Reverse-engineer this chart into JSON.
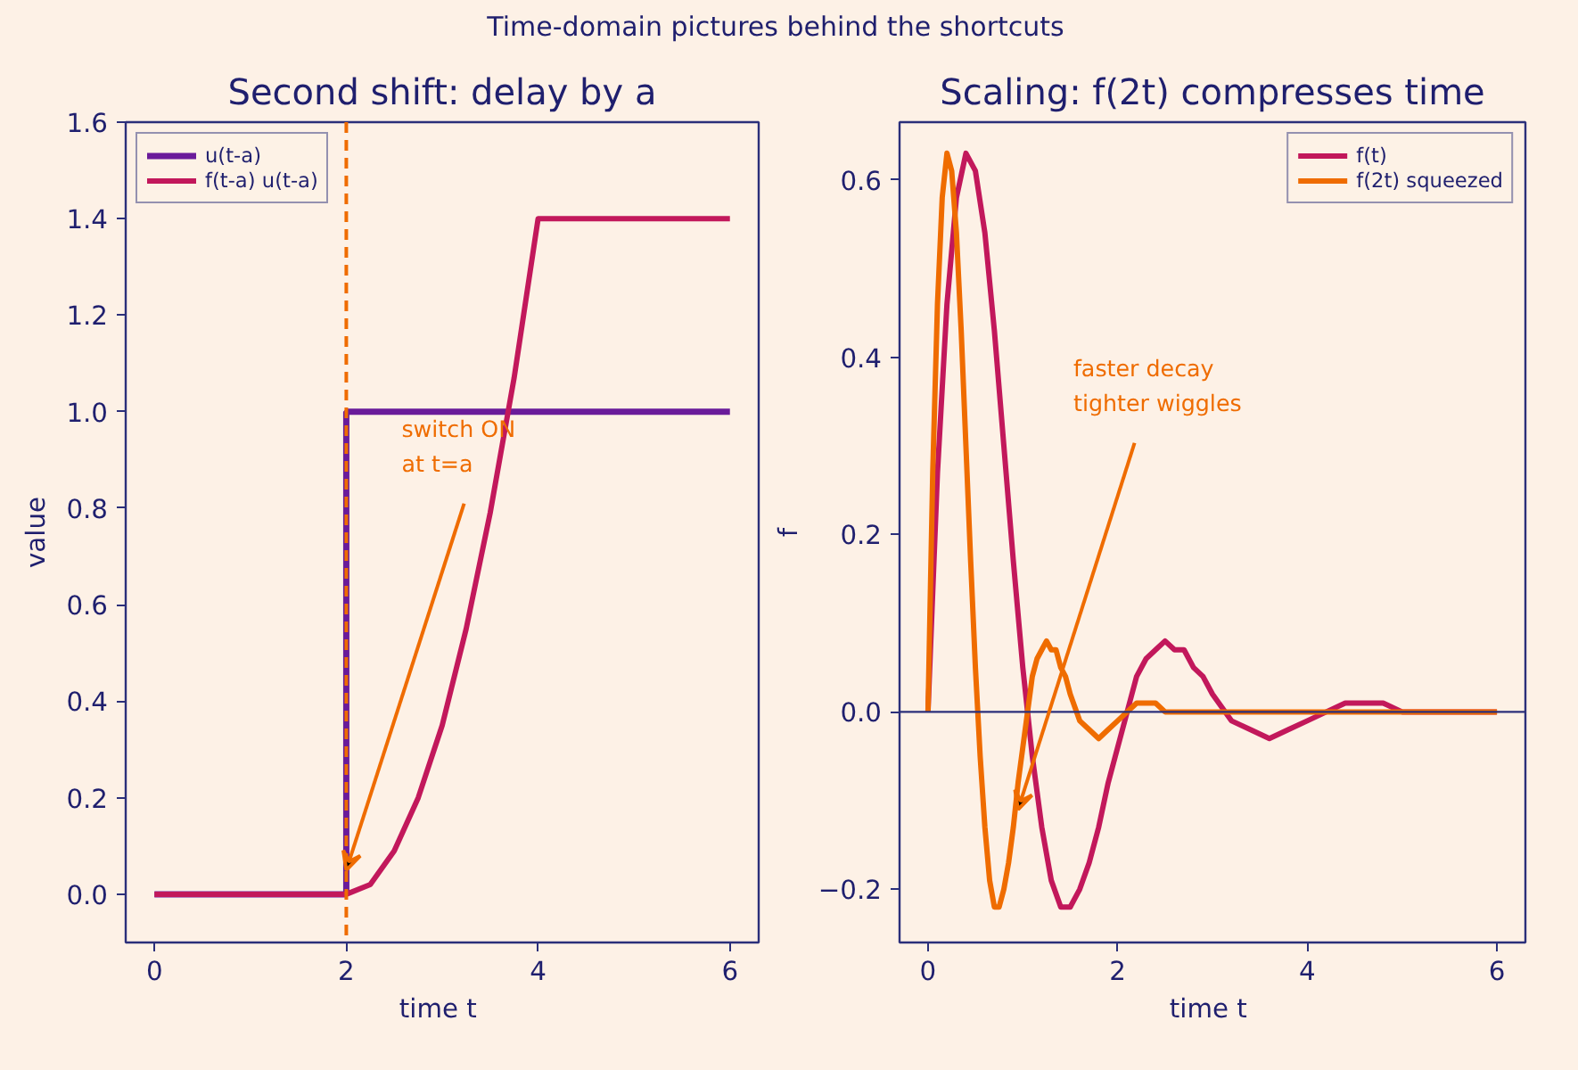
{
  "chart_data": [
    {
      "type": "line",
      "title": "Second shift: delay by a",
      "xlabel": "time  t",
      "ylabel": "value",
      "annotations": [
        "Time-domain pictures behind the shortcuts",
        {
          "text": "switch ON\nat t=a",
          "x": 2,
          "y": 0.05
        }
      ],
      "series": [
        {
          "name": "u(t-a)",
          "color": "#6a1b9a",
          "type": "step",
          "x": [
            0,
            2,
            6
          ],
          "values": [
            0,
            1,
            1
          ]
        },
        {
          "name": "f(t-a) u(t-a)",
          "color": "#c2185b",
          "x": [
            0,
            2,
            2.25,
            2.5,
            2.75,
            3,
            3.25,
            3.5,
            3.75,
            4,
            6
          ],
          "values": [
            0,
            0,
            0.02,
            0.09,
            0.2,
            0.35,
            0.55,
            0.79,
            1.07,
            1.4,
            1.4
          ]
        }
      ],
      "ref_lines": [
        {
          "axis": "x",
          "value": 2,
          "color": "#ef6c00",
          "line_style": "dashed"
        }
      ],
      "xlim": [
        -0.3,
        6.3
      ],
      "ylim": [
        -0.1,
        1.6
      ],
      "xticks": [
        0,
        2,
        4,
        6
      ],
      "yticks": [
        {
          "value": 0,
          "label": "0.0"
        },
        0.2,
        0.4,
        0.6,
        0.8,
        {
          "value": 1,
          "label": "1.0"
        },
        1.2,
        1.4,
        1.6
      ],
      "grid": false,
      "legend": "top left",
      "line_style": "solid"
    },
    {
      "type": "line",
      "title": "Scaling: f(2t) compresses time",
      "xlabel": "time  t",
      "ylabel": "f",
      "annotations": [
        {
          "text": "faster decay\ntighter wiggles",
          "x": 0.95,
          "y": -0.11
        }
      ],
      "series": [
        {
          "name": "f(t)",
          "color": "#c2185b",
          "x": [
            0,
            0.1,
            0.2,
            0.3,
            0.4,
            0.5,
            0.6,
            0.7,
            0.8,
            0.9,
            1.0,
            1.1,
            1.2,
            1.3,
            1.4,
            1.5,
            1.6,
            1.7,
            1.8,
            1.9,
            2.0,
            2.1,
            2.2,
            2.3,
            2.4,
            2.5,
            2.6,
            2.7,
            2.8,
            2.9,
            3.0,
            3.2,
            3.4,
            3.6,
            3.8,
            4.0,
            4.2,
            4.4,
            4.6,
            4.8,
            5.0,
            5.5,
            6.0
          ],
          "values": [
            0,
            0.27,
            0.46,
            0.58,
            0.63,
            0.61,
            0.54,
            0.43,
            0.3,
            0.17,
            0.05,
            -0.05,
            -0.13,
            -0.19,
            -0.22,
            -0.22,
            -0.2,
            -0.17,
            -0.13,
            -0.08,
            -0.04,
            0.0,
            0.04,
            0.06,
            0.07,
            0.08,
            0.07,
            0.07,
            0.05,
            0.04,
            0.02,
            -0.01,
            -0.02,
            -0.03,
            -0.02,
            -0.01,
            0.0,
            0.01,
            0.01,
            0.01,
            0.0,
            0.0,
            0.0
          ]
        },
        {
          "name": "f(2t) squeezed",
          "color": "#ef6c00",
          "x": [
            0,
            0.05,
            0.1,
            0.15,
            0.2,
            0.25,
            0.3,
            0.35,
            0.4,
            0.45,
            0.5,
            0.55,
            0.6,
            0.65,
            0.7,
            0.75,
            0.8,
            0.85,
            0.9,
            0.95,
            1.0,
            1.05,
            1.1,
            1.15,
            1.2,
            1.25,
            1.3,
            1.35,
            1.4,
            1.45,
            1.5,
            1.6,
            1.7,
            1.8,
            1.9,
            2.0,
            2.1,
            2.2,
            2.3,
            2.4,
            2.5,
            3.0,
            4.0,
            5.0,
            6.0
          ],
          "values": [
            0,
            0.27,
            0.46,
            0.58,
            0.63,
            0.61,
            0.54,
            0.43,
            0.3,
            0.17,
            0.05,
            -0.05,
            -0.13,
            -0.19,
            -0.22,
            -0.22,
            -0.2,
            -0.17,
            -0.13,
            -0.08,
            -0.04,
            0.0,
            0.04,
            0.06,
            0.07,
            0.08,
            0.07,
            0.07,
            0.05,
            0.04,
            0.02,
            -0.01,
            -0.02,
            -0.03,
            -0.02,
            -0.01,
            0.0,
            0.01,
            0.01,
            0.01,
            0.0,
            0.0,
            0.0,
            0.0,
            0.0
          ]
        }
      ],
      "ref_lines": [
        {
          "axis": "y",
          "value": 0,
          "color": "#2b2f7a",
          "line_style": "solid"
        }
      ],
      "xlim": [
        -0.3,
        6.3
      ],
      "ylim": [
        -0.26,
        0.665
      ],
      "xticks": [
        0,
        2,
        4,
        6
      ],
      "yticks": [
        {
          "value": -0.2,
          "label": "−0.2"
        },
        {
          "value": 0,
          "label": "0.0"
        },
        0.2,
        0.4,
        0.6
      ],
      "grid": false,
      "legend": "top right",
      "line_style": "solid"
    }
  ]
}
